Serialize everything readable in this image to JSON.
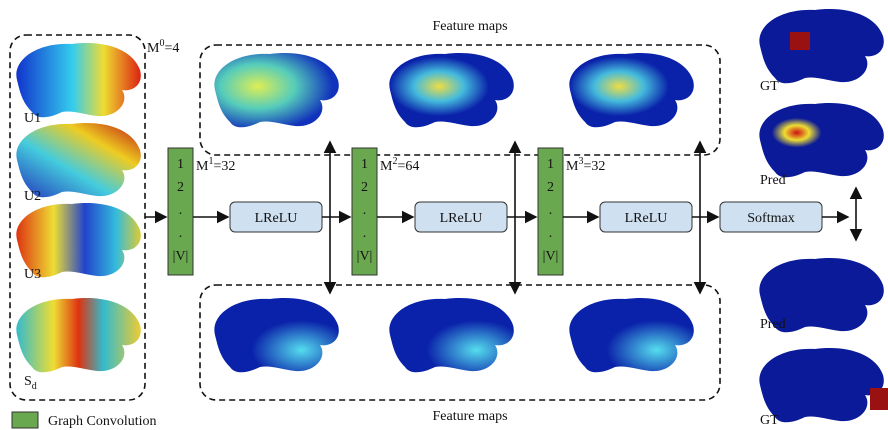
{
  "inputs": {
    "label": {
      "symbol": "M",
      "sup": "0",
      "rest": "=4"
    },
    "features": [
      {
        "base": "U1"
      },
      {
        "base": "U2"
      },
      {
        "base": "U3"
      },
      {
        "base": "S",
        "sub": "d"
      }
    ]
  },
  "feature_maps": {
    "top": "Feature maps",
    "bottom": "Feature maps"
  },
  "layers": [
    {
      "label": {
        "symbol": "M",
        "sup": "1",
        "rest": "=32"
      },
      "rows": [
        "1",
        "2",
        ".",
        ".",
        "|V|"
      ],
      "activation": "LReLU"
    },
    {
      "label": {
        "symbol": "M",
        "sup": "2",
        "rest": "=64"
      },
      "rows": [
        "1",
        "2",
        ".",
        ".",
        "|V|"
      ],
      "activation": "LReLU"
    },
    {
      "label": {
        "symbol": "M",
        "sup": "3",
        "rest": "=32"
      },
      "rows": [
        "1",
        "2",
        ".",
        ".",
        "|V|"
      ],
      "activation": "LReLU"
    }
  ],
  "output": "Softmax",
  "results": [
    "GT",
    "Pred",
    "Pred",
    "GT"
  ],
  "legend": "Graph Convolution"
}
